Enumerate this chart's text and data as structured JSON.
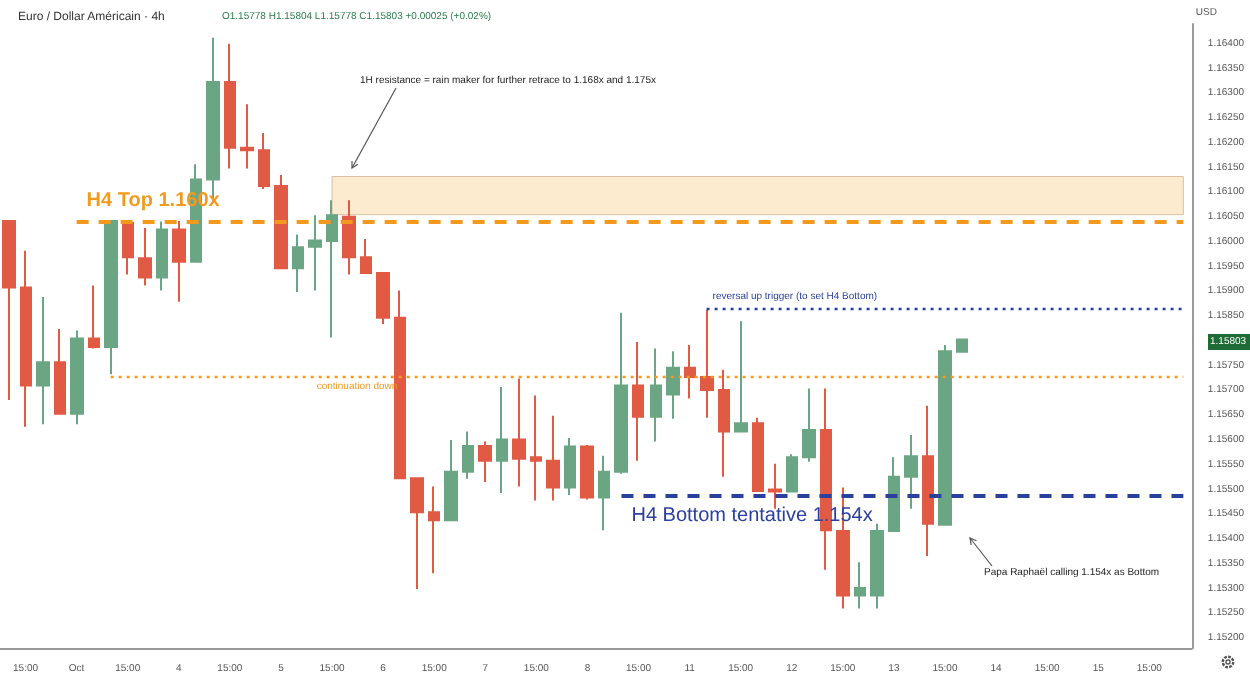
{
  "chart_data": {
    "type": "candlestick",
    "title": "Euro / Dollar Américain · 4h",
    "subtitle": "O1.15778 H1.15804 L1.15778 C1.15803 +0.00025 (+0.02%)",
    "ylabel": "USD",
    "categories": [
      null,
      "15:00",
      null,
      null,
      "Oct",
      null,
      null,
      "15:00",
      null,
      null,
      "4",
      null,
      null,
      "15:00",
      null,
      null,
      "5",
      null,
      null,
      "15:00",
      null,
      null,
      "6",
      null,
      null,
      "15:00",
      null,
      null,
      "7",
      null,
      null,
      "15:00",
      null,
      null,
      "8",
      null,
      null,
      "15:00",
      null,
      null,
      "11",
      null,
      null,
      "15:00",
      null,
      null,
      "12",
      null,
      null,
      "15:00",
      null,
      null,
      "13",
      null,
      null,
      "15:00",
      null,
      null,
      "14",
      null,
      null,
      "15:00",
      null,
      null,
      "15",
      null,
      null,
      "15:00",
      null,
      null
    ],
    "ohlc": [
      [
        1.16042,
        1.16042,
        1.15681,
        1.15908
      ],
      [
        1.15908,
        1.15982,
        1.15627,
        1.1571
      ],
      [
        1.1571,
        1.15889,
        1.15632,
        1.15757
      ],
      [
        1.15757,
        1.15824,
        1.15653,
        1.15653
      ],
      [
        1.15653,
        1.15821,
        1.15632,
        1.15805
      ],
      [
        1.15805,
        1.15912,
        1.15785,
        1.15788
      ],
      [
        1.15788,
        1.16042,
        1.15733,
        1.16042
      ],
      [
        1.16038,
        1.16042,
        1.15934,
        1.15969
      ],
      [
        1.15967,
        1.16028,
        1.15912,
        1.15928
      ],
      [
        1.15928,
        1.16041,
        1.15902,
        1.16025
      ],
      [
        1.16025,
        1.16042,
        1.15879,
        1.1596
      ],
      [
        1.1596,
        1.16157,
        1.1596,
        1.16126
      ],
      [
        1.16126,
        1.16412,
        1.16081,
        1.16323
      ],
      [
        1.16323,
        1.164,
        1.16148,
        1.1619
      ],
      [
        1.1619,
        1.16278,
        1.16148,
        1.16185
      ],
      [
        1.16185,
        1.1622,
        1.16107,
        1.16113
      ],
      [
        1.16113,
        1.16135,
        1.15947,
        1.15947
      ],
      [
        1.15947,
        1.16015,
        1.15899,
        1.15989
      ],
      [
        1.1599,
        1.16054,
        1.15902,
        1.16003
      ],
      [
        1.16002,
        1.16084,
        1.15807,
        1.16054
      ],
      [
        1.16051,
        1.16084,
        1.15934,
        1.15969
      ],
      [
        1.15969,
        1.16006,
        1.15937,
        1.15937
      ],
      [
        1.15937,
        1.15937,
        1.15834,
        1.15847
      ],
      [
        1.15847,
        1.15902,
        1.15523,
        1.15523
      ],
      [
        1.15523,
        1.15523,
        1.15299,
        1.15454
      ],
      [
        1.15454,
        1.15506,
        1.15331,
        1.15438
      ],
      [
        1.15438,
        1.156,
        1.15438,
        1.15536
      ],
      [
        1.15536,
        1.15617,
        1.15522,
        1.15588
      ],
      [
        1.15588,
        1.15597,
        1.15515,
        1.15558
      ],
      [
        1.15558,
        1.15707,
        1.15493,
        1.15601
      ],
      [
        1.15601,
        1.15724,
        1.15506,
        1.15562
      ],
      [
        1.15565,
        1.1569,
        1.15478,
        1.15558
      ],
      [
        1.15558,
        1.15649,
        1.15478,
        1.15504
      ],
      [
        1.15504,
        1.15604,
        1.15489,
        1.15587
      ],
      [
        1.15587,
        1.1559,
        1.1548,
        1.15484
      ],
      [
        1.15484,
        1.15568,
        1.15418,
        1.15536
      ],
      [
        1.15536,
        1.15857,
        1.15532,
        1.1571
      ],
      [
        1.1571,
        1.15798,
        1.15558,
        1.15647
      ],
      [
        1.15647,
        1.15785,
        1.15597,
        1.1571
      ],
      [
        1.15692,
        1.15779,
        1.15643,
        1.15746
      ],
      [
        1.15746,
        1.15792,
        1.15684,
        1.15727
      ],
      [
        1.15727,
        1.15863,
        1.15645,
        1.15701
      ],
      [
        1.15701,
        1.15742,
        1.15526,
        1.15617
      ],
      [
        1.15617,
        1.1584,
        1.15617,
        1.15634
      ],
      [
        1.15634,
        1.15645,
        1.15497,
        1.15497
      ],
      [
        1.155,
        1.15552,
        1.15461,
        1.15496
      ],
      [
        1.15496,
        1.15571,
        1.15496,
        1.15565
      ],
      [
        1.15565,
        1.15704,
        1.15556,
        1.1562
      ],
      [
        1.1562,
        1.15704,
        1.15338,
        1.15418
      ],
      [
        1.15416,
        1.15504,
        1.1526,
        1.15286
      ],
      [
        1.15286,
        1.15353,
        1.1526,
        1.15301
      ],
      [
        1.15286,
        1.15431,
        1.1526,
        1.15416
      ],
      [
        1.15416,
        1.15565,
        1.15416,
        1.15526
      ],
      [
        1.15526,
        1.1561,
        1.15461,
        1.15567
      ],
      [
        1.15567,
        1.15669,
        1.15366,
        1.15431
      ],
      [
        1.15429,
        1.15792,
        1.15429,
        1.15779
      ],
      [
        1.15778,
        1.15804,
        1.15778,
        1.15803
      ],
      null,
      null,
      null,
      null,
      null,
      null,
      null,
      null,
      null,
      null,
      null,
      null,
      null
    ],
    "colors": [
      "#e05a44",
      "#e05a44",
      "#6aa584",
      "#e05a44",
      "#6aa584",
      "#e05a44",
      "#6aa584",
      "#e05a44",
      "#e05a44",
      "#6aa584",
      "#e05a44",
      "#6aa584",
      "#6aa584",
      "#e05a44",
      "#e05a44",
      "#e05a44",
      "#e05a44",
      "#6aa584",
      "#6aa584",
      "#6aa584",
      "#e05a44",
      "#e05a44",
      "#e05a44",
      "#e05a44",
      "#e05a44",
      "#e05a44",
      "#6aa584",
      "#6aa584",
      "#e05a44",
      "#6aa584",
      "#e05a44",
      "#e05a44",
      "#e05a44",
      "#6aa584",
      "#e05a44",
      "#6aa584",
      "#6aa584",
      "#e05a44",
      "#6aa584",
      "#6aa584",
      "#e05a44",
      "#e05a44",
      "#e05a44",
      "#6aa584",
      "#e05a44",
      "#e05a44",
      "#6aa584",
      "#6aa584",
      "#e05a44",
      "#e05a44",
      "#6aa584",
      "#6aa584",
      "#6aa584",
      "#6aa584",
      "#e05a44",
      "#6aa584",
      "#6aa584",
      null,
      null,
      null,
      null,
      null,
      null,
      null,
      null,
      null,
      null,
      null,
      null,
      null
    ],
    "ylim": [
      1.1518,
      1.1644
    ],
    "yticks": [
      {
        "value": 1.152,
        "label": "1.15200"
      },
      {
        "value": 1.1525,
        "label": "1.15250"
      },
      {
        "value": 1.153,
        "label": "1.15300"
      },
      {
        "value": 1.1535,
        "label": "1.15350"
      },
      {
        "value": 1.154,
        "label": "1.15400"
      },
      {
        "value": 1.1545,
        "label": "1.15450"
      },
      {
        "value": 1.155,
        "label": "1.15500"
      },
      {
        "value": 1.1555,
        "label": "1.15550"
      },
      {
        "value": 1.156,
        "label": "1.15600"
      },
      {
        "value": 1.1565,
        "label": "1.15650"
      },
      {
        "value": 1.157,
        "label": "1.15700"
      },
      {
        "value": 1.1575,
        "label": "1.15750"
      },
      {
        "value": 1.1585,
        "label": "1.15850"
      },
      {
        "value": 1.159,
        "label": "1.15900"
      },
      {
        "value": 1.1595,
        "label": "1.15950"
      },
      {
        "value": 1.16,
        "label": "1.16000"
      },
      {
        "value": 1.1605,
        "label": "1.16050"
      },
      {
        "value": 1.161,
        "label": "1.16100"
      },
      {
        "value": 1.1615,
        "label": "1.16150"
      },
      {
        "value": 1.162,
        "label": "1.16200"
      },
      {
        "value": 1.1625,
        "label": "1.16250"
      },
      {
        "value": 1.163,
        "label": "1.16300"
      },
      {
        "value": 1.1635,
        "label": "1.16350"
      },
      {
        "value": 1.164,
        "label": "1.16400"
      }
    ],
    "ref_lines": [
      {
        "axis": "y",
        "value": 1.16042,
        "label": "H4 Top 1.160x",
        "color": "#f39a1e",
        "line_style": "dashed"
      },
      {
        "axis": "y",
        "value": 1.15729,
        "label": "continuation down",
        "color": "#f39a1e",
        "line_style": "dotted"
      },
      {
        "axis": "y",
        "value": 1.15866,
        "label": "reversal up trigger (to set H4 Bottom)",
        "color": "#2a3f9e",
        "line_style": "dotted"
      },
      {
        "axis": "y",
        "value": 1.15487,
        "label": "H4 Bottom tentative 1.154x",
        "color": "#2a3f9e",
        "line_style": "dashed"
      }
    ],
    "bands": [
      {
        "axis": "y",
        "from": 1.16055,
        "to": 1.16132,
        "color": "#fdebd0"
      }
    ],
    "annotations": [
      "1H resistance = rain maker for further retrace to 1.168x and 1.175x",
      "Papa Raphaël calling 1.154x as Bottom",
      "1.15803"
    ],
    "grid": false
  }
}
